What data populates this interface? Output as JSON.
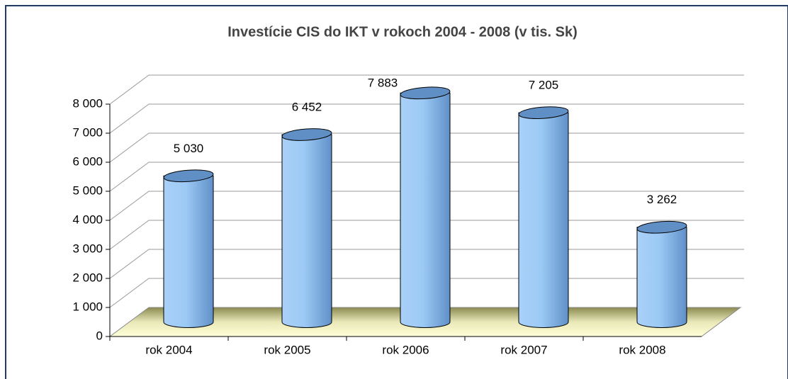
{
  "chart_data": {
    "type": "bar",
    "title": "Investície CIS do IKT v rokoch 2004 - 2008 (v tis. Sk)",
    "categories": [
      "rok 2004",
      "rok 2005",
      "rok 2006",
      "rok 2007",
      "rok 2008"
    ],
    "values": [
      5030,
      6452,
      7883,
      7205,
      3262
    ],
    "value_labels": [
      "5 030",
      "6 452",
      "7 883",
      "7 205",
      "3 262"
    ],
    "color": "#8fbff0",
    "ylim": [
      0,
      8000
    ],
    "yticks": [
      0,
      {
        "value": 1000,
        "label": "1 000"
      },
      {
        "value": 2000,
        "label": "2 000"
      },
      {
        "value": 3000,
        "label": "3 000"
      },
      {
        "value": 4000,
        "label": "4 000"
      },
      {
        "value": 5000,
        "label": "5 000"
      },
      {
        "value": 6000,
        "label": "6 000"
      },
      {
        "value": 7000,
        "label": "7 000"
      },
      {
        "value": 8000,
        "label": "8 000"
      }
    ],
    "grid": true
  }
}
